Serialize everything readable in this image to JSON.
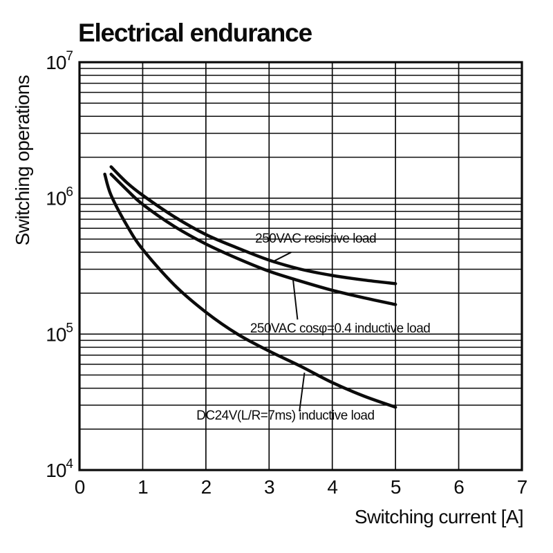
{
  "title": "Electrical endurance",
  "chart_data": {
    "type": "line",
    "title": "Electrical endurance",
    "xlabel": "Switching current [A]",
    "ylabel": "Switching operations",
    "xlim": [
      0,
      7
    ],
    "y_scale": "log",
    "ylim": [
      10000,
      10000000
    ],
    "x_ticks": [
      0,
      1,
      2,
      3,
      4,
      5,
      6,
      7
    ],
    "y_tick_exponents": [
      4,
      5,
      6,
      7
    ],
    "grid": true,
    "line_color": "#0b0b0b",
    "series": [
      {
        "name": "250VAC resistive load",
        "x": [
          0.5,
          0.75,
          1,
          1.5,
          2,
          2.5,
          3,
          3.5,
          4,
          4.5,
          5
        ],
        "y": [
          1700000,
          1300000,
          1050000,
          730000,
          540000,
          430000,
          350000,
          300000,
          270000,
          250000,
          235000
        ]
      },
      {
        "name": "250VAC cosφ=0.4 inductive load",
        "x": [
          0.5,
          0.75,
          1,
          1.5,
          2,
          2.5,
          3,
          3.5,
          4,
          4.5,
          5
        ],
        "y": [
          1500000,
          1150000,
          900000,
          620000,
          460000,
          360000,
          290000,
          245000,
          210000,
          185000,
          165000
        ]
      },
      {
        "name": "DC24V(L/R=7ms) inductive load",
        "x": [
          0.4,
          0.5,
          0.75,
          1,
          1.5,
          2,
          2.5,
          3,
          3.5,
          4,
          4.5,
          5
        ],
        "y": [
          1500000,
          1050000,
          630000,
          420000,
          230000,
          145000,
          100000,
          75000,
          58000,
          44000,
          35000,
          29000
        ]
      }
    ],
    "annotations": [
      {
        "text": "250VAC resistive load",
        "x": 2.78,
        "y": 470000,
        "leader": {
          "x1": 3.35,
          "y1": 400000,
          "x2": 3.08,
          "y2": 345000
        }
      },
      {
        "text": "250VAC cosφ=0.4 inductive load",
        "x": 2.7,
        "y": 103000,
        "leader": {
          "x1": 3.45,
          "y1": 128000,
          "x2": 3.38,
          "y2": 250000
        }
      },
      {
        "text": "DC24V(L/R=7ms) inductive load",
        "x": 1.85,
        "y": 23500,
        "leader": {
          "x1": 3.48,
          "y1": 27000,
          "x2": 3.56,
          "y2": 52000
        }
      }
    ]
  }
}
